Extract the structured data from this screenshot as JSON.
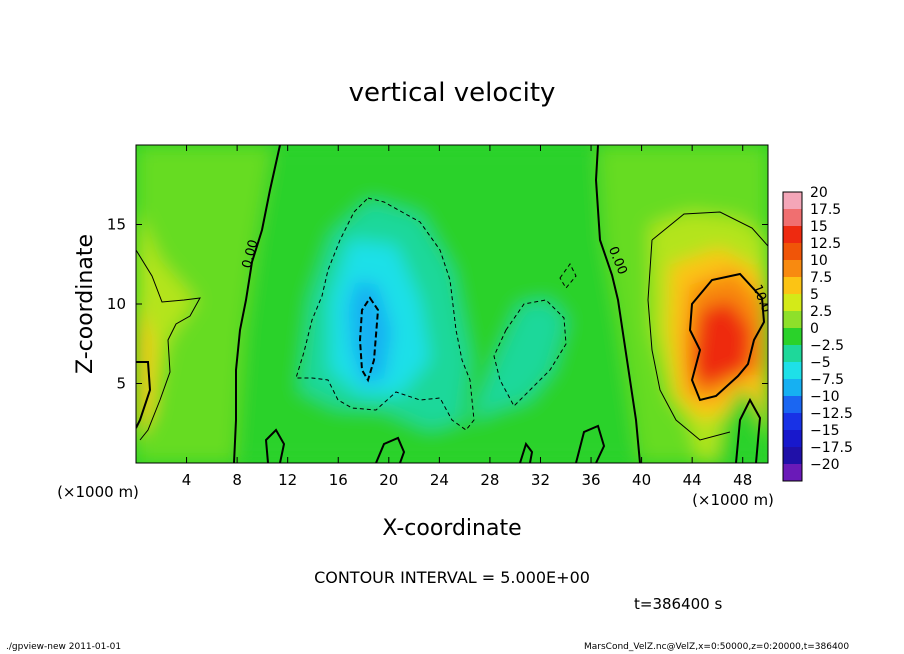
{
  "chart_data": {
    "type": "heatmap",
    "title": "vertical velocity",
    "xlabel": "X-coordinate",
    "ylabel": "Z-coordinate",
    "x_unit": "(×1000 m)",
    "x_ticks": [
      4,
      8,
      12,
      16,
      20,
      24,
      28,
      32,
      36,
      40,
      44,
      48
    ],
    "y_ticks": [
      5,
      10,
      15
    ],
    "xlim": [
      0,
      50
    ],
    "ylim": [
      0,
      20
    ],
    "colorbar_levels": [
      20,
      17.5,
      15,
      12.5,
      10,
      7.5,
      5,
      2.5,
      0,
      -2.5,
      -5,
      -7.5,
      -10,
      -12.5,
      -15,
      -17.5,
      -20
    ],
    "colorbar_labels": [
      "20",
      "17.5",
      "15",
      "12.5",
      "10",
      "7.5",
      "5",
      "2.5",
      "0",
      "−2.5",
      "−5",
      "−7.5",
      "−10",
      "−12.5",
      "−15",
      "−17.5",
      "−20"
    ],
    "colorbar_colors": [
      "#f4a6b8",
      "#f06f70",
      "#ee2a10",
      "#f05508",
      "#f88a10",
      "#fcc414",
      "#d4ea18",
      "#8ee02a",
      "#2ad22a",
      "#1ed89a",
      "#1ee0e8",
      "#16b0f2",
      "#1a66f2",
      "#1832e6",
      "#1818cc",
      "#2010a8",
      "#6a1ab8"
    ],
    "contour_labels": [
      "0.00",
      "0.00",
      "10.0"
    ],
    "features": [
      {
        "kind": "updraft",
        "x": 47,
        "z": 8,
        "w": 11
      },
      {
        "kind": "updraft",
        "x": 45.5,
        "z": 5.5,
        "w": 8
      },
      {
        "kind": "updraft",
        "x": 0.5,
        "z": 4,
        "w": 6
      },
      {
        "kind": "downdraft",
        "x": 18.3,
        "z": 8,
        "w": -9
      },
      {
        "kind": "downdraft",
        "x": 30.5,
        "z": 7,
        "w": -4
      }
    ]
  },
  "contour_interval_text": "CONTOUR INTERVAL = 5.000E+00",
  "time_text": "t=386400 s",
  "footer_left": "./gpview-new   2011-01-01",
  "footer_right": "MarsCond_VelZ.nc@VelZ,x=0:50000,z=0:20000,t=386400"
}
